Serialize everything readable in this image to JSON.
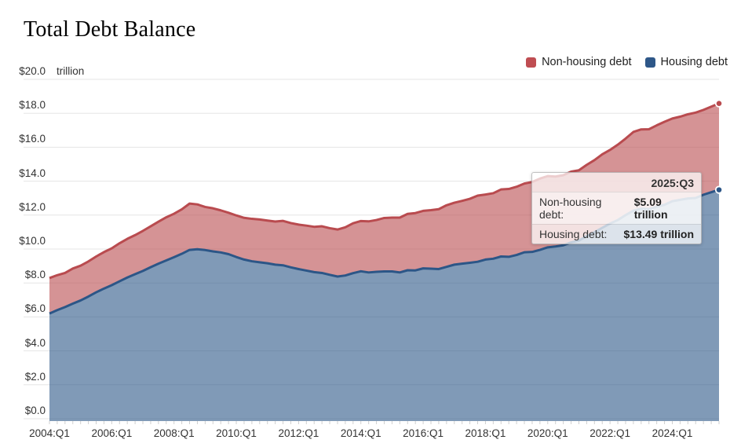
{
  "page": {
    "title": "Total Debt Balance"
  },
  "legend": {
    "items": [
      {
        "label": "Non-housing debt",
        "color": "#bf4d52"
      },
      {
        "label": "Housing debt",
        "color": "#2e5788"
      }
    ]
  },
  "tooltip": {
    "period": "2025:Q3",
    "rows": [
      {
        "label": "Non-housing debt:",
        "value": "$5.09 trillion"
      },
      {
        "label": "Housing debt:",
        "value": "$13.49 trillion"
      }
    ]
  },
  "chart_data": {
    "type": "area",
    "stacked": true,
    "title": "Total Debt Balance",
    "unit_label": "trillion",
    "frequency": "quarterly",
    "x_start": "2004:Q1",
    "x_end": "2025:Q3",
    "ylim": [
      0,
      20
    ],
    "y_tick_step": 2,
    "grid": "horizontal",
    "legend_position": "top-right",
    "y_tick_labels": [
      "$0.0",
      "$2.0",
      "$4.0",
      "$6.0",
      "$8.0",
      "$10.0",
      "$12.0",
      "$14.0",
      "$16.0",
      "$18.0",
      "$20.0"
    ],
    "x_tick_labels": [
      "2004:Q1",
      "2006:Q1",
      "2008:Q1",
      "2010:Q1",
      "2012:Q1",
      "2014:Q1",
      "2016:Q1",
      "2018:Q1",
      "2020:Q1",
      "2022:Q1",
      "2024:Q1"
    ],
    "colors": {
      "nonhousing_line": "#b94b4f",
      "nonhousing_fill": "rgba(185,75,79,0.6)",
      "housing_line": "#2c5687",
      "housing_fill": "rgba(44,86,135,0.6)",
      "gridline": "#e5e5e5",
      "tick": "#cfcfcf"
    },
    "series": [
      {
        "name": "Housing debt",
        "values": [
          6.2,
          6.4,
          6.58,
          6.78,
          6.97,
          7.2,
          7.45,
          7.67,
          7.87,
          8.1,
          8.32,
          8.52,
          8.71,
          8.93,
          9.14,
          9.33,
          9.52,
          9.72,
          9.95,
          9.99,
          9.94,
          9.86,
          9.8,
          9.7,
          9.53,
          9.38,
          9.28,
          9.22,
          9.16,
          9.08,
          9.04,
          8.92,
          8.82,
          8.73,
          8.64,
          8.59,
          8.48,
          8.38,
          8.44,
          8.58,
          8.69,
          8.62,
          8.66,
          8.68,
          8.68,
          8.62,
          8.75,
          8.74,
          8.86,
          8.84,
          8.82,
          8.95,
          9.08,
          9.14,
          9.19,
          9.25,
          9.38,
          9.43,
          9.56,
          9.54,
          9.65,
          9.81,
          9.83,
          9.95,
          10.1,
          10.15,
          10.22,
          10.39,
          10.5,
          10.76,
          10.99,
          11.25,
          11.5,
          11.71,
          12.0,
          12.26,
          12.38,
          12.35,
          12.49,
          12.61,
          12.82,
          12.9,
          12.98,
          13.01,
          13.2,
          13.35,
          13.49
        ]
      },
      {
        "name": "Non-housing debt",
        "values": [
          2.09,
          2.06,
          2.01,
          2.07,
          2.05,
          2.07,
          2.11,
          2.15,
          2.17,
          2.24,
          2.28,
          2.3,
          2.36,
          2.41,
          2.47,
          2.54,
          2.56,
          2.62,
          2.73,
          2.64,
          2.54,
          2.54,
          2.48,
          2.44,
          2.45,
          2.46,
          2.5,
          2.52,
          2.52,
          2.54,
          2.62,
          2.61,
          2.62,
          2.65,
          2.67,
          2.75,
          2.75,
          2.77,
          2.84,
          2.94,
          2.96,
          3.01,
          3.05,
          3.15,
          3.17,
          3.23,
          3.32,
          3.38,
          3.39,
          3.45,
          3.53,
          3.63,
          3.65,
          3.7,
          3.77,
          3.9,
          3.83,
          3.86,
          3.95,
          4.0,
          4.02,
          4.05,
          4.12,
          4.2,
          4.2,
          4.12,
          4.13,
          4.17,
          4.14,
          4.2,
          4.25,
          4.33,
          4.34,
          4.44,
          4.51,
          4.64,
          4.67,
          4.71,
          4.8,
          4.89,
          4.87,
          4.9,
          4.96,
          5.03,
          5.0,
          5.04,
          5.09
        ]
      }
    ],
    "end_points": {
      "x": "2025:Q3",
      "housing_total": 13.49,
      "overall_total": 18.58
    }
  }
}
